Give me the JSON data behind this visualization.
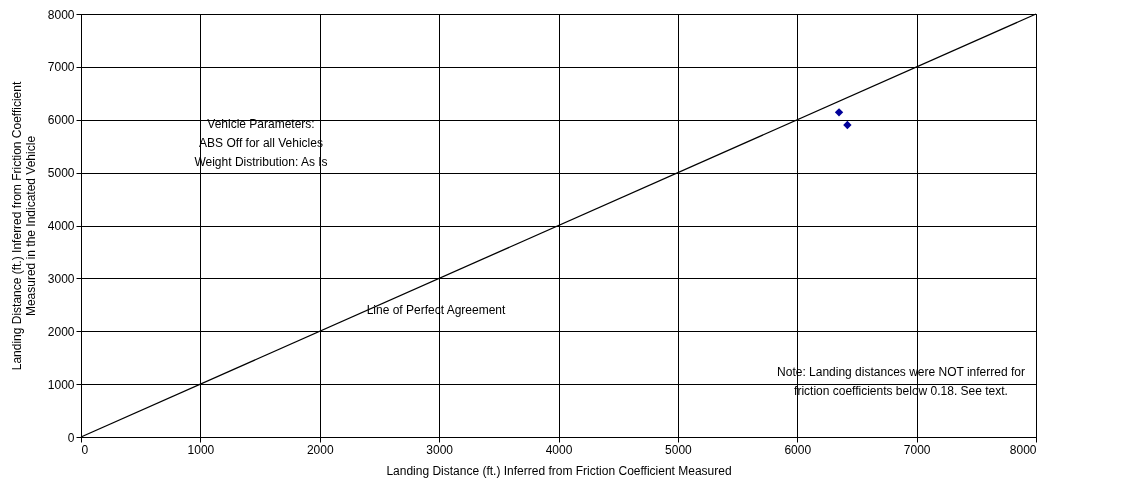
{
  "chart_data": {
    "type": "scatter",
    "xlabel": "Landing Distance (ft.) Inferred from Friction Coefficient Measured",
    "ylabel": "Landing Distance (ft.) Inferred from Friction Coefficient\nMeasured in the Indicated Vehicle",
    "series": [
      {
        "color": "#000099",
        "marker": "diamond",
        "x": [
          6350,
          6420
        ],
        "values": [
          6140,
          5900
        ]
      },
      {
        "type": "line",
        "color": "#000000",
        "marker": "none",
        "x": [
          0,
          8000
        ],
        "values": [
          0,
          8000
        ]
      }
    ],
    "xlim": [
      0,
      8000
    ],
    "ylim": [
      0,
      8000
    ],
    "xticks": [
      0,
      1000,
      2000,
      3000,
      4000,
      5000,
      6000,
      7000,
      8000
    ],
    "yticks": [
      0,
      1000,
      2000,
      3000,
      4000,
      5000,
      6000,
      7000,
      8000
    ],
    "grid": true,
    "annotations": [
      "Vehicle Parameters:",
      "ABS Off for all Vehicles",
      "Weight Distribution: As Is",
      "Line of Perfect Agreement",
      "Note: Landing distances were NOT inferred for\nfriction coefficients below 0.18. See text."
    ]
  }
}
